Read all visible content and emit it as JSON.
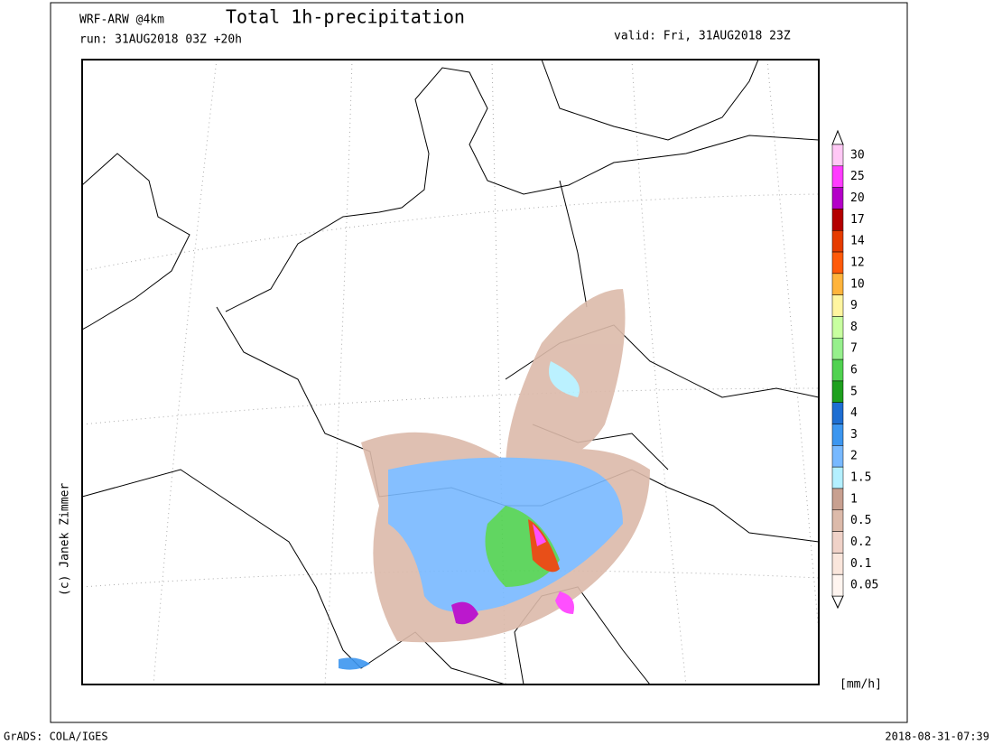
{
  "header": {
    "model": "WRF-ARW @4km",
    "title": "Total 1h-precipitation",
    "run": "run: 31AUG2018 03Z +20h",
    "valid": "valid: Fri, 31AUG2018 23Z"
  },
  "credit": "(c) Janek Zimmer",
  "colorbar": {
    "unit": "[mm/h]",
    "levels": [
      {
        "value": 30,
        "color": "#ffc8f5"
      },
      {
        "value": 25,
        "color": "#ff3cff"
      },
      {
        "value": 20,
        "color": "#b400c8"
      },
      {
        "value": 17,
        "color": "#b40000"
      },
      {
        "value": 14,
        "color": "#e63c00"
      },
      {
        "value": 12,
        "color": "#ff5a0a"
      },
      {
        "value": 10,
        "color": "#ffb43c"
      },
      {
        "value": 9,
        "color": "#fff5a0"
      },
      {
        "value": 8,
        "color": "#c8ffa0"
      },
      {
        "value": 7,
        "color": "#96f08c"
      },
      {
        "value": 6,
        "color": "#50d250"
      },
      {
        "value": 5,
        "color": "#1ea01e"
      },
      {
        "value": 4,
        "color": "#1e6ed2"
      },
      {
        "value": 3,
        "color": "#3c96f0"
      },
      {
        "value": 2,
        "color": "#78b9ff"
      },
      {
        "value": 1.5,
        "color": "#b4f0ff"
      },
      {
        "value": 1,
        "color": "#c8a090"
      },
      {
        "value": 0.5,
        "color": "#dcbaaa"
      },
      {
        "value": 0.2,
        "color": "#f0d2c8"
      },
      {
        "value": 0.1,
        "color": "#fae6dc"
      },
      {
        "value": 0.05,
        "color": "#fff5f0"
      }
    ]
  },
  "footer": {
    "left": "GrADS: COLA/IGES",
    "right": "2018-08-31-07:39"
  }
}
